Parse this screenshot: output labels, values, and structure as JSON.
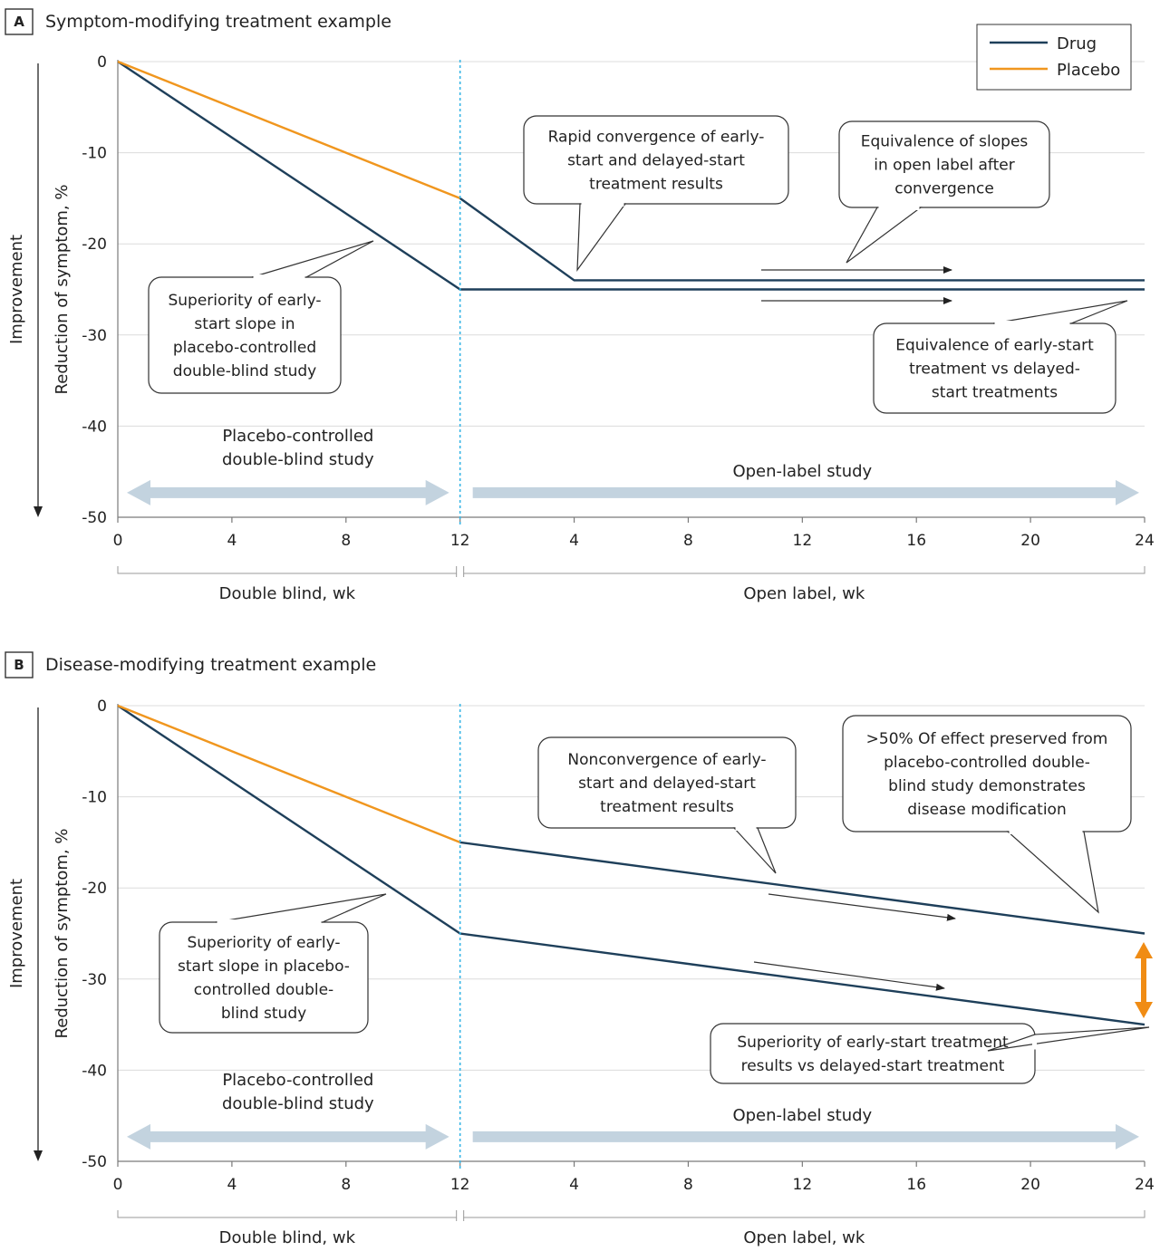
{
  "colors": {
    "drug": "#1e3f5a",
    "placebo": "#f0961e",
    "divider": "#38b6e6",
    "study_arrow": "#c3d3df",
    "effect_arrow": "#f08c14"
  },
  "legend": {
    "entries": [
      "Drug",
      "Placebo"
    ]
  },
  "chart_data": [
    {
      "type": "line",
      "panel": "A",
      "title": "Symptom-modifying treatment example",
      "xlabel_phases": [
        "Double blind, wk",
        "Open label, wk"
      ],
      "ylabel": "Reduction of symptom, %",
      "ylabel_outer": "Improvement",
      "ylim": [
        -50,
        0
      ],
      "yticks": [
        0,
        -10,
        -20,
        -30,
        -40,
        -50
      ],
      "xlim": [
        0,
        36
      ],
      "xticks": [
        0,
        4,
        8,
        12,
        16,
        20,
        24,
        28,
        32,
        36
      ],
      "xtick_labels": [
        "0",
        "4",
        "8",
        "12",
        "4",
        "8",
        "12",
        "16",
        "20",
        "24"
      ],
      "divider_x": 12,
      "series": [
        {
          "name": "Drug",
          "role": "early-start",
          "x": [
            0,
            12,
            36
          ],
          "y": [
            0,
            -25,
            -25
          ]
        },
        {
          "name": "Placebo",
          "role": "double-blind placebo",
          "x": [
            0,
            12
          ],
          "y": [
            0,
            -15
          ]
        },
        {
          "name": "Drug",
          "role": "delayed-start",
          "x": [
            12,
            16,
            36
          ],
          "y": [
            -15,
            -24,
            -24
          ]
        }
      ],
      "study_phases": [
        {
          "label_lines": [
            "Placebo-controlled",
            "double-blind study"
          ],
          "x_range": [
            0,
            12
          ]
        },
        {
          "label_lines": [
            "Open-label study"
          ],
          "x_range": [
            12,
            36
          ]
        }
      ],
      "annotations": [
        {
          "lines": [
            "Rapid convergence of early-",
            "start and delayed-start",
            "treatment results"
          ]
        },
        {
          "lines": [
            "Equivalence of slopes",
            "in open label after",
            "convergence"
          ]
        },
        {
          "lines": [
            "Superiority of early-",
            "start slope in",
            "placebo-controlled",
            "double-blind study"
          ]
        },
        {
          "lines": [
            "Equivalence of early-start",
            "treatment vs delayed-",
            "start treatments"
          ]
        }
      ]
    },
    {
      "type": "line",
      "panel": "B",
      "title": "Disease-modifying treatment example",
      "xlabel_phases": [
        "Double blind, wk",
        "Open label, wk"
      ],
      "ylabel": "Reduction of symptom, %",
      "ylabel_outer": "Improvement",
      "ylim": [
        -50,
        0
      ],
      "yticks": [
        0,
        -10,
        -20,
        -30,
        -40,
        -50
      ],
      "xlim": [
        0,
        36
      ],
      "xticks": [
        0,
        4,
        8,
        12,
        16,
        20,
        24,
        28,
        32,
        36
      ],
      "xtick_labels": [
        "0",
        "4",
        "8",
        "12",
        "4",
        "8",
        "12",
        "16",
        "20",
        "24"
      ],
      "divider_x": 12,
      "series": [
        {
          "name": "Drug",
          "role": "early-start",
          "x": [
            0,
            12,
            36
          ],
          "y": [
            0,
            -25,
            -35
          ]
        },
        {
          "name": "Placebo",
          "role": "double-blind placebo",
          "x": [
            0,
            12
          ],
          "y": [
            0,
            -15
          ]
        },
        {
          "name": "Drug",
          "role": "delayed-start",
          "x": [
            12,
            36
          ],
          "y": [
            -15,
            -25
          ]
        }
      ],
      "study_phases": [
        {
          "label_lines": [
            "Placebo-controlled",
            "double-blind study"
          ],
          "x_range": [
            0,
            12
          ]
        },
        {
          "label_lines": [
            "Open-label study"
          ],
          "x_range": [
            12,
            36
          ]
        }
      ],
      "annotations": [
        {
          "lines": [
            "Nonconvergence of early-",
            "start and delayed-start",
            "treatment results"
          ]
        },
        {
          "lines": [
            ">50% Of effect preserved from",
            "placebo-controlled double-",
            "blind study demonstrates",
            "disease modification"
          ]
        },
        {
          "lines": [
            "Superiority of early-",
            "start slope in placebo-",
            "controlled double-",
            "blind study"
          ]
        },
        {
          "lines": [
            "Superiority of early-start treatment",
            "results vs delayed-start treatment"
          ]
        }
      ]
    }
  ]
}
